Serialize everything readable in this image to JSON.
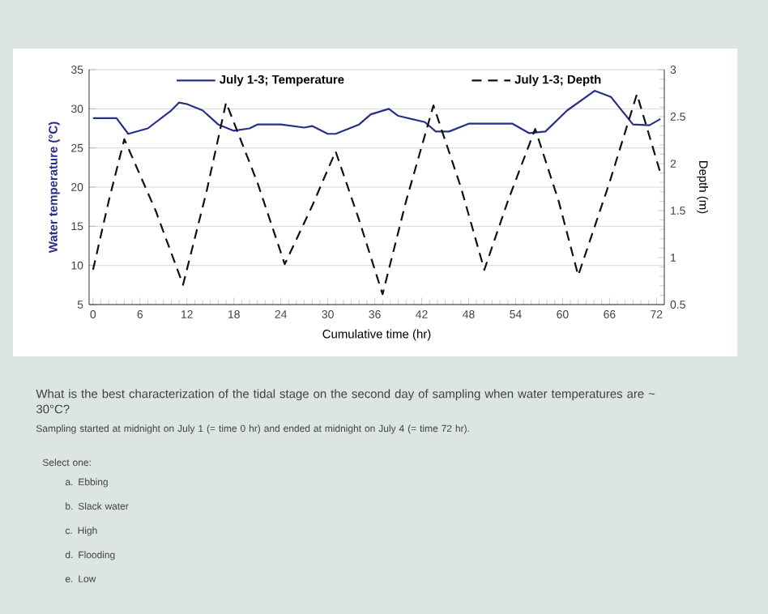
{
  "chart_data": {
    "type": "line",
    "xlabel": "Cumulative time (hr)",
    "ylabel": "Water temperature (°C)",
    "y2label": "Depth (m)",
    "xlim": [
      -0.5,
      73
    ],
    "ylim": [
      5,
      35
    ],
    "y2lim": [
      0.5,
      3
    ],
    "xticks": [
      0,
      6,
      12,
      18,
      24,
      30,
      36,
      42,
      48,
      54,
      60,
      66,
      72
    ],
    "yticks": [
      5,
      10,
      15,
      20,
      25,
      30,
      35
    ],
    "y2ticks": [
      0.5,
      1,
      1.5,
      2,
      2.5,
      3
    ],
    "grid": "y",
    "legend": "top",
    "marker": "none",
    "series": [
      {
        "name": "July 1-3; Temperature",
        "color": "#26308a",
        "line_style": "solid",
        "x": [
          0,
          3,
          4.5,
          7,
          10,
          11,
          12,
          14,
          16,
          18,
          20,
          21,
          24,
          27,
          28,
          30,
          31,
          34,
          35.5,
          37.8,
          39,
          42.4,
          43.8,
          45.5,
          48,
          53.6,
          55.7,
          57.8,
          60.6,
          64.1,
          66.2,
          69,
          71.1,
          72.5
        ],
        "values": [
          28.8,
          28.8,
          26.8,
          27.5,
          29.8,
          30.8,
          30.6,
          29.8,
          28,
          27.2,
          27.5,
          28,
          28,
          27.6,
          27.8,
          26.8,
          26.8,
          28,
          29.3,
          30,
          29.1,
          28.3,
          27.1,
          27.1,
          28.1,
          28.1,
          26.9,
          27.1,
          29.8,
          32.3,
          31.5,
          28,
          27.9,
          28.7
        ]
      },
      {
        "name": "July 1-3; Depth",
        "color": "#111111",
        "line_style": "dashed",
        "axis": "y2",
        "x": [
          0,
          2,
          4,
          8,
          11.5,
          14.5,
          17,
          21,
          24.5,
          28,
          31,
          34,
          37,
          40,
          43.5,
          47,
          50,
          53,
          56.5,
          59.5,
          62,
          66,
          69.5,
          72.5
        ],
        "values": [
          0.87,
          1.6,
          2.26,
          1.5,
          0.71,
          1.7,
          2.65,
          1.8,
          0.93,
          1.55,
          2.13,
          1.4,
          0.61,
          1.6,
          2.62,
          1.75,
          0.87,
          1.6,
          2.37,
          1.6,
          0.81,
          1.8,
          2.74,
          1.9
        ]
      }
    ],
    "annotations": [
      "What is the best characterization of the tidal stage on the second day of sampling when water temperatures are ~ 30°C?",
      "Sampling started at midnight on July 1 (= time 0 hr) and ended at midnight on July 4 (= time 72 hr).",
      "Select one:",
      "a.  Ebbing",
      "b.  Slack water",
      "c.  High",
      "d.  Flooding",
      "e.  Low"
    ]
  }
}
